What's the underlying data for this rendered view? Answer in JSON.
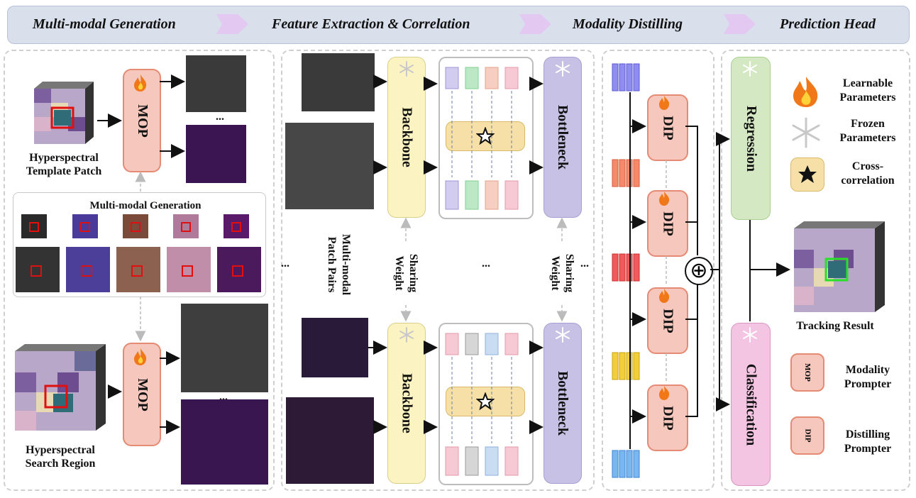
{
  "banner": {
    "stages": [
      "Multi-modal Generation",
      "Feature Extraction & Correlation",
      "Modality Distilling",
      "Prediction Head"
    ]
  },
  "left": {
    "template_label": "Hyperspectral\nTemplate Patch",
    "search_label": "Hyperspectral\nSearch Region",
    "mop_label": "MOP",
    "ellipsis": "...",
    "generation_title": "Multi-modal Generation"
  },
  "middle": {
    "backbone_label": "Backbone",
    "bottleneck_label": "Bottleneck",
    "sharing_weight": "Sharing\nWeight",
    "patch_pairs": "Multi-modal\nPatch Pairs",
    "ellipsis": "..."
  },
  "distill": {
    "dip_label": "DIP",
    "oplus": "⊕"
  },
  "head": {
    "regression_label": "Regression",
    "classification_label": "Classification",
    "tracking_result": "Tracking Result"
  },
  "legend": {
    "learnable": "Learnable\nParameters",
    "frozen": "Frozen\nParameters",
    "cross": "Cross-\ncorrelation",
    "mop_chip": "MOP",
    "dip_chip": "DIP",
    "mop_name": "Modality\nPrompter",
    "dip_name": "Distilling\nPrompter"
  },
  "colors": {
    "mop_fill": "#f6c7bd",
    "backbone_fill": "#fbf4c2",
    "bottleneck_fill": "#c7c2e5",
    "regression_fill": "#d4e9c3",
    "classification_fill": "#f4c5e3",
    "cross_fill": "#f7e0a8",
    "banner_fill": "#d9e0ec",
    "arrow_chevron": "#e3c8f2"
  },
  "icons": {
    "learnable": "flame-icon",
    "frozen": "snowflake-icon",
    "cross": "star-icon",
    "fusion": "oplus-icon"
  }
}
